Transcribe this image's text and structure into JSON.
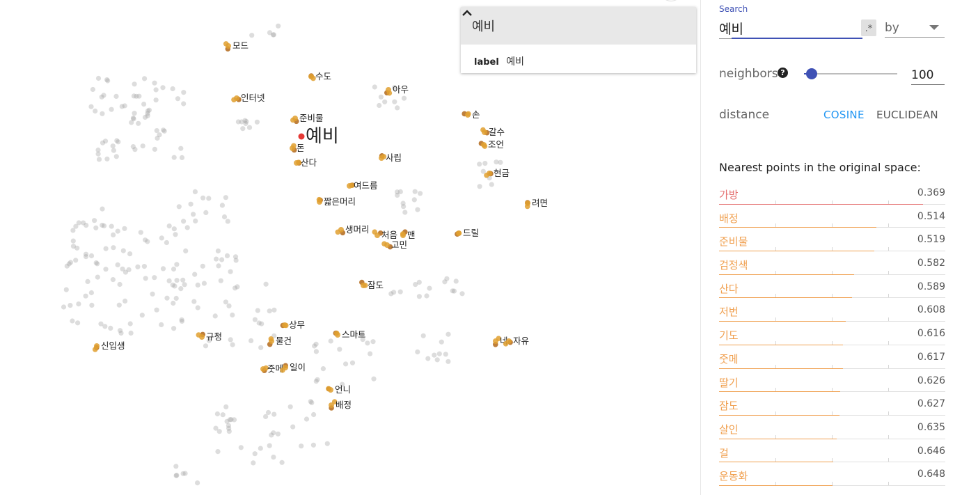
{
  "scatter": {
    "selected_label": "예비",
    "labels": [
      "모드",
      "수도",
      "인터넷",
      "아우",
      "준비물",
      "손",
      "갈수",
      "조언",
      "돈",
      "산다",
      "사립",
      "현금",
      "여드름",
      "짧은머리",
      "려면",
      "생머리",
      "처음",
      "맨",
      "고민",
      "드릴",
      "잠도",
      "상무",
      "스마트",
      "규정",
      "물건",
      "신입생",
      "네",
      "자유",
      "줏메",
      "일이",
      "언니",
      "배정"
    ]
  },
  "info_card": {
    "title": "예비",
    "key": "label",
    "value": "예비"
  },
  "panel": {
    "search_label": "Search",
    "search_value": "예비",
    "regex_label": ".*",
    "by_label": "by",
    "neighbors_label": "neighbors",
    "help_icon_glyph": "?",
    "neighbors_value": "100",
    "neighbors_fraction": 0.08,
    "distance_label": "distance",
    "cosine_label": "COSINE",
    "euclidean_label": "EUCLIDEAN",
    "active_metric": "COSINE",
    "nearest_title": "Nearest points in the original space:",
    "nearest": [
      {
        "word": "가방",
        "value": "0.369",
        "color": "#e57373"
      },
      {
        "word": "배정",
        "value": "0.514",
        "color": "#f0a050"
      },
      {
        "word": "준비물",
        "value": "0.519",
        "color": "#f0a050"
      },
      {
        "word": "검정색",
        "value": "0.582",
        "color": "#f0a050"
      },
      {
        "word": "산다",
        "value": "0.589",
        "color": "#f0a050"
      },
      {
        "word": "저번",
        "value": "0.608",
        "color": "#f0a050"
      },
      {
        "word": "기도",
        "value": "0.616",
        "color": "#f0a050"
      },
      {
        "word": "줏메",
        "value": "0.617",
        "color": "#f0a050"
      },
      {
        "word": "딸기",
        "value": "0.626",
        "color": "#f0a050"
      },
      {
        "word": "잠도",
        "value": "0.627",
        "color": "#f0a050"
      },
      {
        "word": "살인",
        "value": "0.635",
        "color": "#f0a050"
      },
      {
        "word": "걸",
        "value": "0.646",
        "color": "#f0a050"
      },
      {
        "word": "운동화",
        "value": "0.648",
        "color": "#f0a050"
      }
    ]
  }
}
